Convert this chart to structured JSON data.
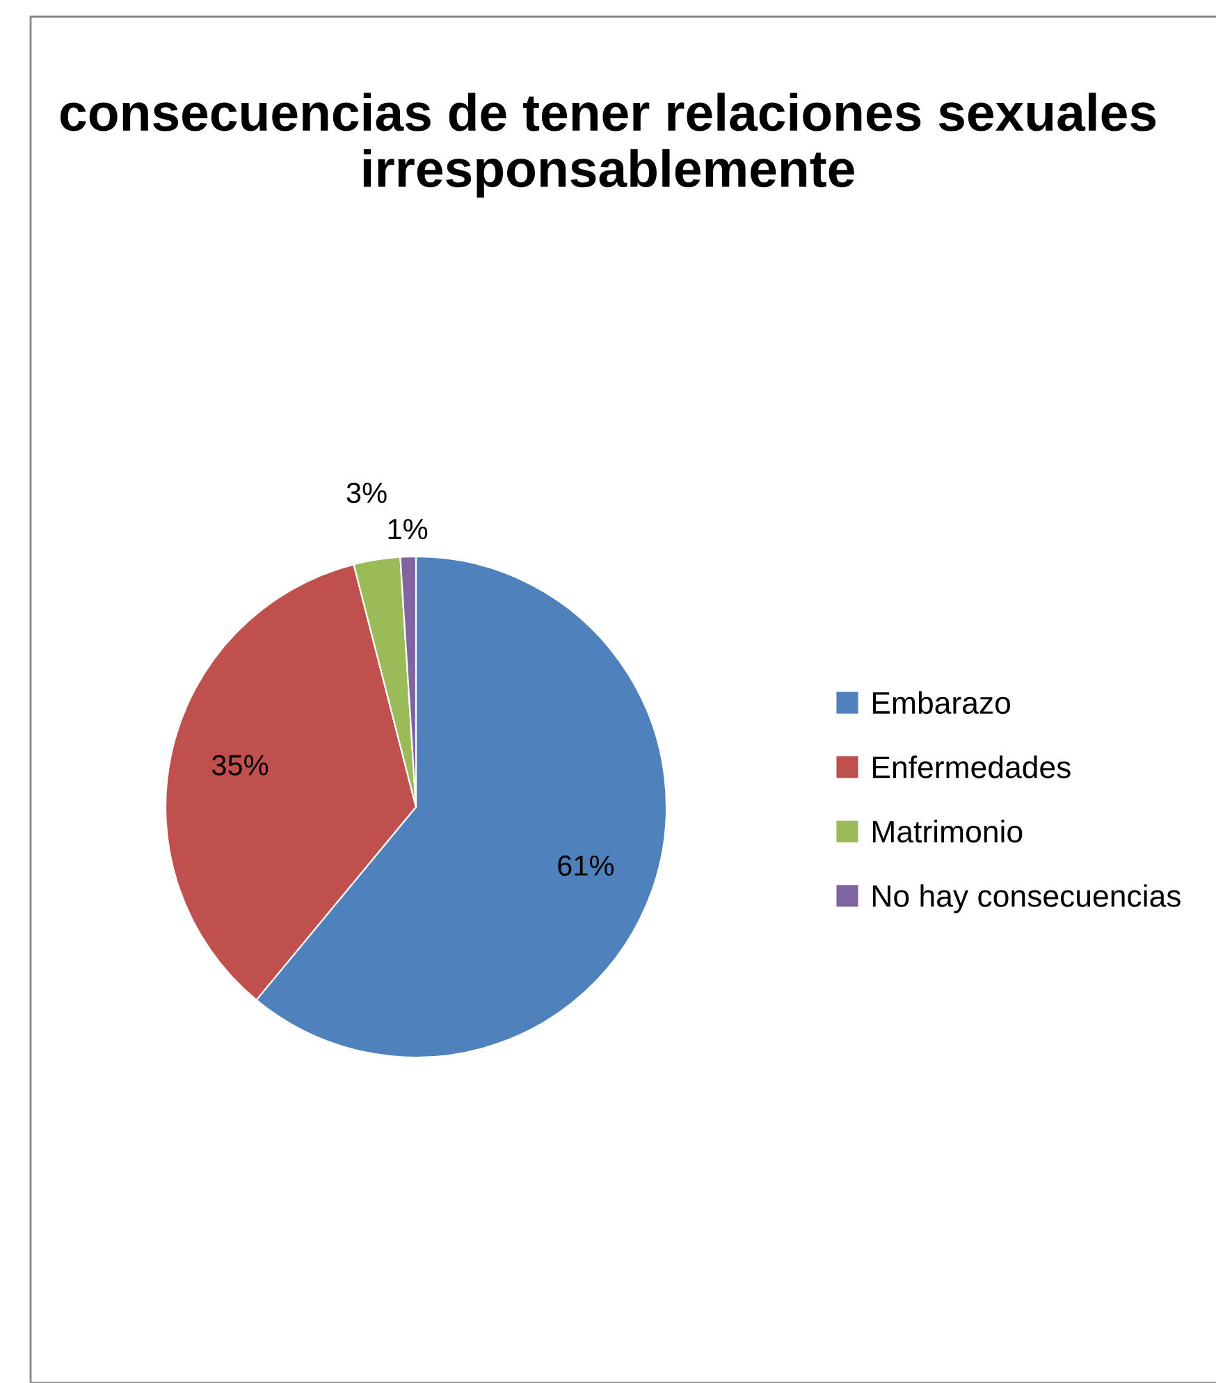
{
  "chart_data": {
    "type": "pie",
    "title": "consecuencias de tener relaciones sexuales irresponsablemente",
    "categories": [
      "Embarazo",
      "Enfermedades",
      "Matrimonio",
      "No hay consecuencias"
    ],
    "values": [
      61,
      35,
      3,
      1
    ],
    "colors": [
      "#4f81bd",
      "#c0504d",
      "#9bbb59",
      "#8064a2"
    ],
    "value_labels": [
      "61%",
      "35%",
      "3%",
      "1%"
    ],
    "legend": "right"
  }
}
